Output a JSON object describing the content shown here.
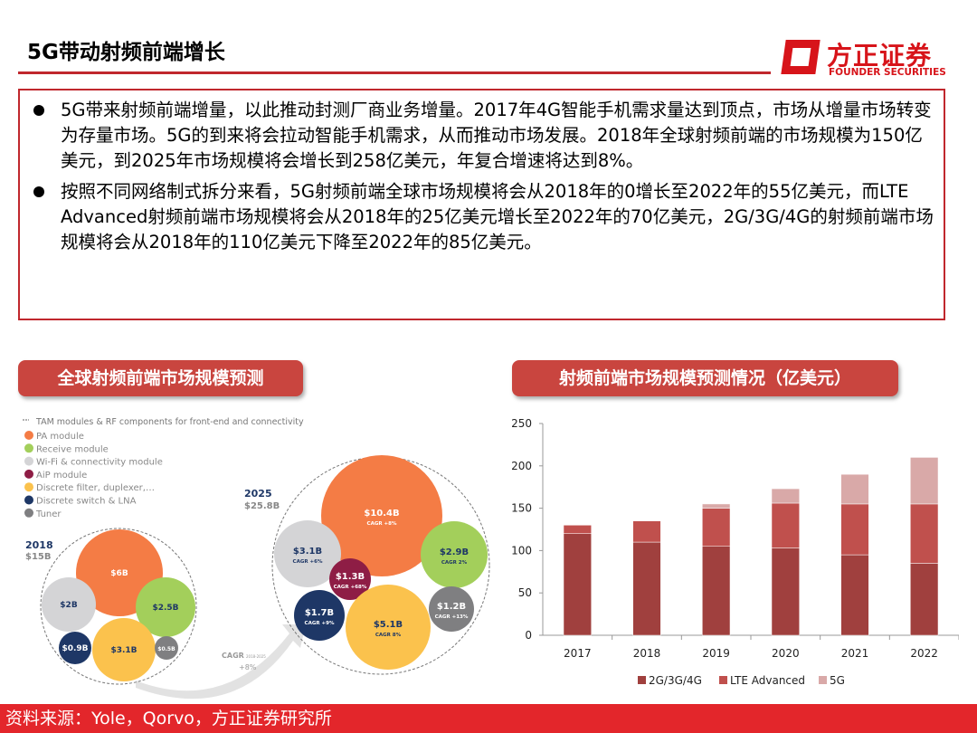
{
  "header": {
    "title": "5G带动射频前端增长",
    "logo_cn": "方正证券",
    "logo_en": "FOUNDER SECURITIES"
  },
  "bullets": [
    "5G带来射频前端增量，以此推动封测厂商业务增量。2017年4G智能手机需求量达到顶点，市场从增量市场转变为存量市场。5G的到来将会拉动智能手机需求，从而推动市场发展。2018年全球射频前端的市场规模为150亿美元，到2025年市场规模将会增长到258亿美元，年复合增速将达到8%。",
    "按照不同网络制式拆分来看，5G射频前端全球市场规模将会从2018年的0增长至2022年的55亿美元，而LTE Advanced射频前端市场规模将会从2018年的25亿美元增长至2022年的70亿美元，2G/3G/4G的射频前端市场规模将会从2018年的110亿美元下降至2022年的85亿美元。"
  ],
  "left_panel": {
    "banner": "全球射频前端市场规模预测",
    "legend_title": "TAM modules & RF components for front-end and connectivity",
    "legend": [
      {
        "label": "PA module",
        "color": "#f47c45"
      },
      {
        "label": "Receive module",
        "color": "#a3cf5b"
      },
      {
        "label": "Wi-Fi & connectivity module",
        "color": "#d4d4d6"
      },
      {
        "label": "AiP module",
        "color": "#8e1d45"
      },
      {
        "label": "Discrete filter, duplexer,…",
        "color": "#fbc24d"
      },
      {
        "label": "Discrete switch & LNA",
        "color": "#1e3766"
      },
      {
        "label": "Tuner",
        "color": "#7f7f81"
      }
    ],
    "y2018": {
      "year": "2018",
      "total": "$15B",
      "bubbles": [
        {
          "value": "$6B",
          "color": "#f47c45"
        },
        {
          "value": "$2B",
          "color": "#d4d4d6"
        },
        {
          "value": "$2.5B",
          "color": "#a3cf5b"
        },
        {
          "value": "$0.9B",
          "color": "#1e3766"
        },
        {
          "value": "$3.1B",
          "color": "#fbc24d"
        },
        {
          "value": "$0.5B",
          "color": "#7f7f81"
        }
      ]
    },
    "y2025": {
      "year": "2025",
      "total": "$25.8B",
      "bubbles": [
        {
          "value": "$10.4B",
          "cagr": "CAGR +8%",
          "color": "#f47c45"
        },
        {
          "value": "$3.1B",
          "cagr": "CAGR +6%",
          "color": "#d4d4d6"
        },
        {
          "value": "$1.3B",
          "cagr": "CAGR +68%",
          "color": "#8e1d45"
        },
        {
          "value": "$2.9B",
          "cagr": "CAGR 2%",
          "color": "#a3cf5b"
        },
        {
          "value": "$1.7B",
          "cagr": "CAGR +9%",
          "color": "#1e3766"
        },
        {
          "value": "$5.1B",
          "cagr": "CAGR 8%",
          "color": "#fbc24d"
        },
        {
          "value": "$1.2B",
          "cagr": "CAGR +13%",
          "color": "#7f7f81"
        }
      ]
    },
    "cagr_label": "CAGR",
    "cagr_period": "2018-2025",
    "cagr_value": "+8%"
  },
  "right_panel": {
    "banner": "射频前端市场规模预测情况（亿美元）"
  },
  "chart_data": {
    "type": "bar",
    "stacked": true,
    "categories": [
      "2017",
      "2018",
      "2019",
      "2020",
      "2021",
      "2022"
    ],
    "series": [
      {
        "name": "2G/3G/4G",
        "values": [
          120,
          110,
          105,
          103,
          95,
          85
        ],
        "color": "#a0403e"
      },
      {
        "name": "LTE Advanced",
        "values": [
          10,
          25,
          45,
          53,
          60,
          70
        ],
        "color": "#c0504d"
      },
      {
        "name": "5G",
        "values": [
          0,
          0,
          5,
          17,
          35,
          55
        ],
        "color": "#d9a9a8"
      }
    ],
    "ylim": [
      0,
      250
    ],
    "yticks": [
      0,
      50,
      100,
      150,
      200,
      250
    ],
    "grid": false,
    "legend": "bottom"
  },
  "footer": {
    "source": "资料来源：Yole，Qorvo，方正证券研究所"
  }
}
